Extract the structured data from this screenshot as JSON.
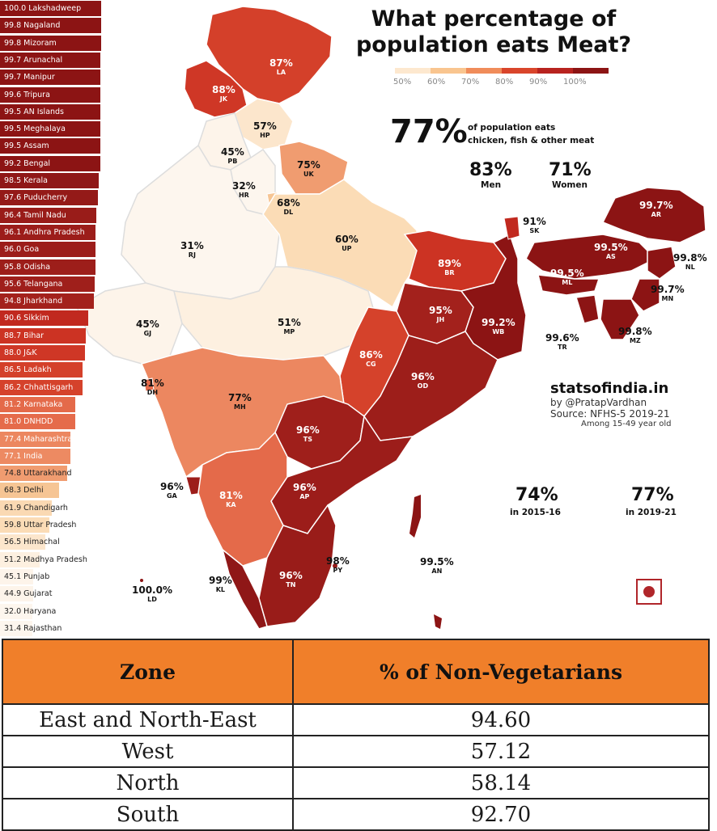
{
  "title_line1": "What percentage of",
  "title_line2": "population eats Meat?",
  "scale": {
    "labels": [
      "50%",
      "60%",
      "70%",
      "80%",
      "90%",
      "100%"
    ],
    "colors": [
      "#fde8cf",
      "#f9c58f",
      "#f08c5a",
      "#d9452b",
      "#b8231f",
      "#8c1414"
    ]
  },
  "headline": {
    "percent": "77%",
    "caption_line1": "of population eats",
    "caption_line2": "chicken, fish & other meat",
    "men_value": "83%",
    "men_label": "Men",
    "women_value": "71%",
    "women_label": "Women"
  },
  "trend": {
    "v1": "74%",
    "l1": "in 2015-16",
    "v2": "77%",
    "l2": "in 2019-21"
  },
  "credits": {
    "site": "statsofindia.in",
    "by": "by @PratapVardhan",
    "source": "Source: NFHS-5 2019-21",
    "note": "Among 15-49 year old"
  },
  "ranking": [
    {
      "label": "100.0 Lakshadweep",
      "value": 100.0,
      "color": "#8c1414"
    },
    {
      "label": "99.8 Nagaland",
      "value": 99.8,
      "color": "#8c1414"
    },
    {
      "label": "99.8 Mizoram",
      "value": 99.8,
      "color": "#8c1414"
    },
    {
      "label": "99.7 Arunachal",
      "value": 99.7,
      "color": "#8c1414"
    },
    {
      "label": "99.7 Manipur",
      "value": 99.7,
      "color": "#8c1414"
    },
    {
      "label": "99.6 Tripura",
      "value": 99.6,
      "color": "#8c1414"
    },
    {
      "label": "99.5 AN Islands",
      "value": 99.5,
      "color": "#8c1414"
    },
    {
      "label": "99.5 Meghalaya",
      "value": 99.5,
      "color": "#8c1414"
    },
    {
      "label": "99.5 Assam",
      "value": 99.5,
      "color": "#8c1414"
    },
    {
      "label": "99.2 Bengal",
      "value": 99.2,
      "color": "#8c1414"
    },
    {
      "label": "98.5 Kerala",
      "value": 98.5,
      "color": "#8f1717"
    },
    {
      "label": "97.6 Puducherry",
      "value": 97.6,
      "color": "#941a18"
    },
    {
      "label": "96.4 Tamil Nadu",
      "value": 96.4,
      "color": "#991c19"
    },
    {
      "label": "96.1 Andhra Pradesh",
      "value": 96.1,
      "color": "#9c1d1a"
    },
    {
      "label": "96.0 Goa",
      "value": 96.0,
      "color": "#9c1d1a"
    },
    {
      "label": "95.8 Odisha",
      "value": 95.8,
      "color": "#9d1e1a"
    },
    {
      "label": "95.6 Telangana",
      "value": 95.6,
      "color": "#9f1f1b"
    },
    {
      "label": "94.8 Jharkhand",
      "value": 94.8,
      "color": "#a3211c"
    },
    {
      "label": "90.6 Sikkim",
      "value": 90.6,
      "color": "#c1291f"
    },
    {
      "label": "88.7 Bihar",
      "value": 88.7,
      "color": "#cc3323"
    },
    {
      "label": "88.0 J&K",
      "value": 88.0,
      "color": "#cf3726"
    },
    {
      "label": "86.5 Ladakh",
      "value": 86.5,
      "color": "#d4402a"
    },
    {
      "label": "86.2 Chhattisgarh",
      "value": 86.2,
      "color": "#d5422b"
    },
    {
      "label": "81.2 Karnataka",
      "value": 81.2,
      "color": "#e46a4a"
    },
    {
      "label": "81.0 DNHDD",
      "value": 81.0,
      "color": "#e56b4b"
    },
    {
      "label": "77.4 Maharashtra",
      "value": 77.4,
      "color": "#ec8760"
    },
    {
      "label": "77.1 India",
      "value": 77.1,
      "color": "#ed8a62"
    },
    {
      "label": "74.8 Uttarakhand",
      "value": 74.8,
      "color": "#f09c70"
    },
    {
      "label": "68.3 Delhi",
      "value": 68.3,
      "color": "#f6c594"
    },
    {
      "label": "61.9 Chandigarh",
      "value": 61.9,
      "color": "#fad9b3"
    },
    {
      "label": "59.8 Uttar Pradesh",
      "value": 59.8,
      "color": "#fbdcb6"
    },
    {
      "label": "56.5 Himachal",
      "value": 56.5,
      "color": "#fce6cc"
    },
    {
      "label": "51.2 Madhya Pradesh",
      "value": 51.2,
      "color": "#fdf0e0"
    },
    {
      "label": "45.1 Punjab",
      "value": 45.1,
      "color": "#fdf4ea"
    },
    {
      "label": "44.9 Gujarat",
      "value": 44.9,
      "color": "#fdf4ea"
    },
    {
      "label": "32.0 Haryana",
      "value": 32.0,
      "color": "#fdf6ee"
    },
    {
      "label": "31.4 Rajasthan",
      "value": 31.4,
      "color": "#fdf6ee"
    }
  ],
  "states": [
    {
      "code": "LA",
      "pct": "87%"
    },
    {
      "code": "JK",
      "pct": "88%"
    },
    {
      "code": "HP",
      "pct": "57%"
    },
    {
      "code": "PB",
      "pct": "45%"
    },
    {
      "code": "UK",
      "pct": "75%"
    },
    {
      "code": "HR",
      "pct": "32%"
    },
    {
      "code": "DL",
      "pct": "68%"
    },
    {
      "code": "RJ",
      "pct": "31%"
    },
    {
      "code": "UP",
      "pct": "60%"
    },
    {
      "code": "GJ",
      "pct": "45%"
    },
    {
      "code": "MP",
      "pct": "51%"
    },
    {
      "code": "BR",
      "pct": "89%"
    },
    {
      "code": "JH",
      "pct": "95%"
    },
    {
      "code": "WB",
      "pct": "99.2%"
    },
    {
      "code": "SK",
      "pct": "91%"
    },
    {
      "code": "AR",
      "pct": "99.7%"
    },
    {
      "code": "AS",
      "pct": "99.5%"
    },
    {
      "code": "NL",
      "pct": "99.8%"
    },
    {
      "code": "ML",
      "pct": "99.5%"
    },
    {
      "code": "MN",
      "pct": "99.7%"
    },
    {
      "code": "TR",
      "pct": "99.6%"
    },
    {
      "code": "MZ",
      "pct": "99.8%"
    },
    {
      "code": "CG",
      "pct": "86%"
    },
    {
      "code": "OD",
      "pct": "96%"
    },
    {
      "code": "DH",
      "pct": "81%"
    },
    {
      "code": "MH",
      "pct": "77%"
    },
    {
      "code": "TS",
      "pct": "96%"
    },
    {
      "code": "AP",
      "pct": "96%"
    },
    {
      "code": "GA",
      "pct": "96%"
    },
    {
      "code": "KA",
      "pct": "81%"
    },
    {
      "code": "TN",
      "pct": "96%"
    },
    {
      "code": "PY",
      "pct": "98%"
    },
    {
      "code": "KL",
      "pct": "99%"
    },
    {
      "code": "AN",
      "pct": "99.5%"
    },
    {
      "code": "LD",
      "pct": "100.0%"
    }
  ],
  "table": {
    "headers": [
      "Zone",
      "% of Non-Vegetarians"
    ],
    "rows": [
      [
        "East and North-East",
        "94.60"
      ],
      [
        "West",
        "57.12"
      ],
      [
        "North",
        "58.14"
      ],
      [
        "South",
        "92.70"
      ]
    ]
  }
}
